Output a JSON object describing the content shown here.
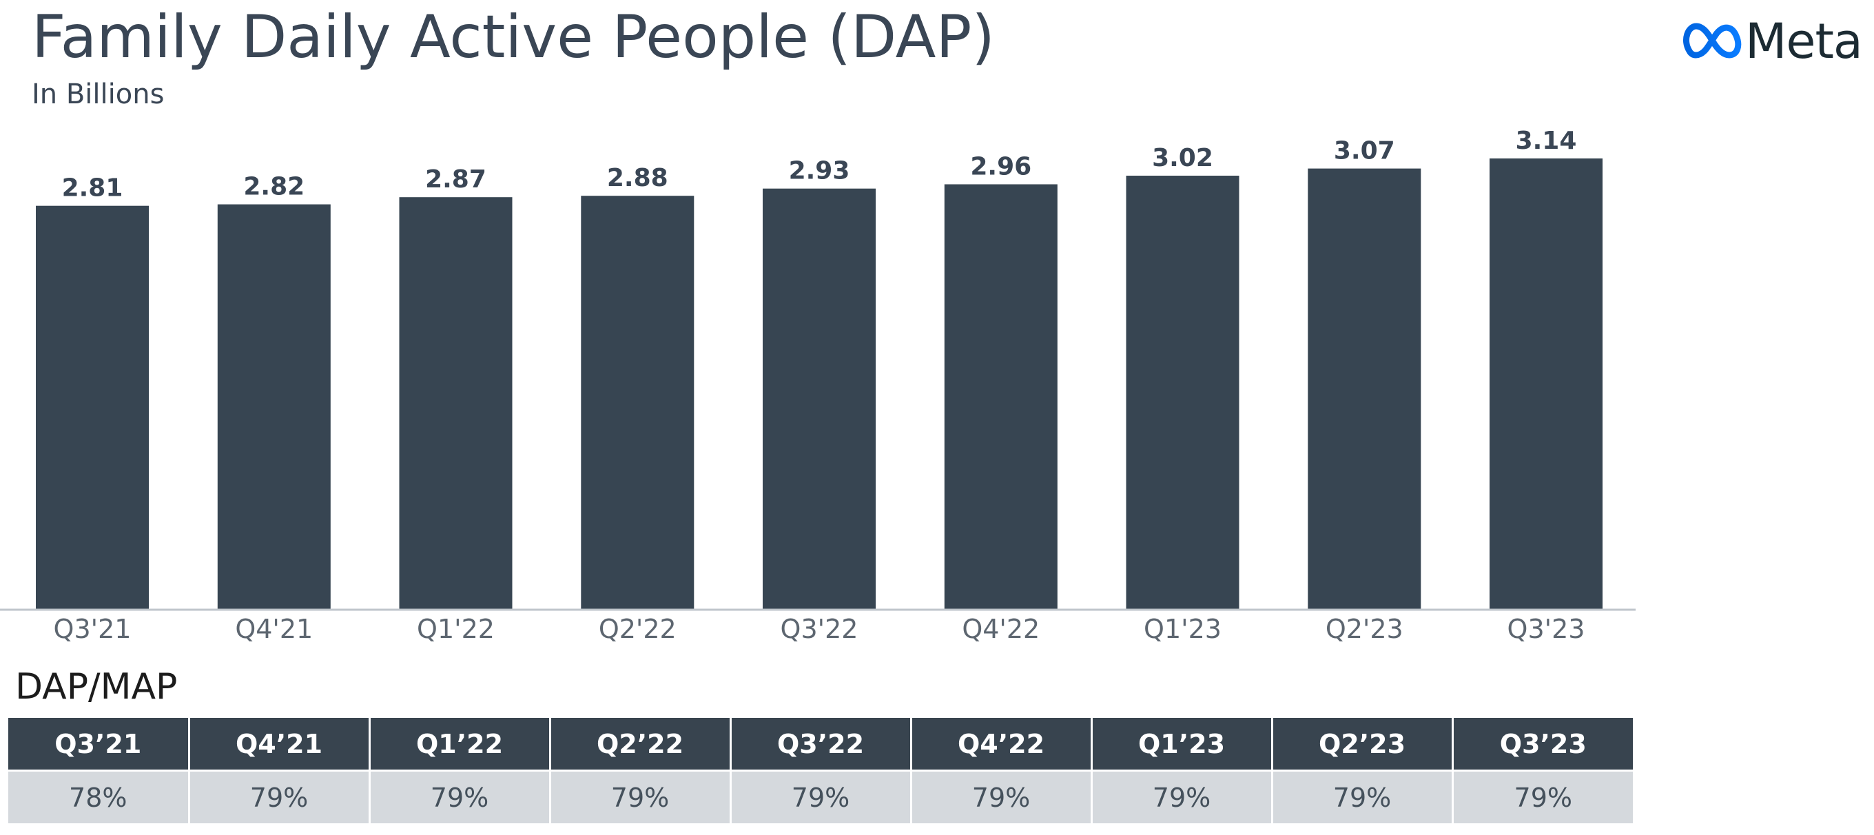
{
  "header": {
    "title": "Family Daily Active People (DAP)",
    "subtitle": "In Billions",
    "logo_text": "Meta",
    "logo_icon": "meta-infinity-icon"
  },
  "colors": {
    "bar": "#374552",
    "title": "#3a4655",
    "axis_line": "#bfc5cb",
    "tick_label": "#5d6670",
    "table_header_bg": "#38444f",
    "table_value_bg": "#d5d9dd",
    "logo_blue": "#0866ff"
  },
  "chart_data": {
    "type": "bar",
    "title": "Family Daily Active People (DAP)",
    "subtitle": "In Billions",
    "categories": [
      "Q3'21",
      "Q4'21",
      "Q1'22",
      "Q2'22",
      "Q3'22",
      "Q4'22",
      "Q1'23",
      "Q2'23",
      "Q3'23"
    ],
    "values": [
      2.81,
      2.82,
      2.87,
      2.88,
      2.93,
      2.96,
      3.02,
      3.07,
      3.14
    ],
    "value_labels": [
      "2.81",
      "2.82",
      "2.87",
      "2.88",
      "2.93",
      "2.96",
      "3.02",
      "3.07",
      "3.14"
    ],
    "ylim": [
      0,
      3.14
    ],
    "grid": false,
    "legend": "none"
  },
  "dap_map": {
    "label": "DAP/MAP",
    "quarters": [
      "Q3’21",
      "Q4’21",
      "Q1’22",
      "Q2’22",
      "Q3’22",
      "Q4’22",
      "Q1’23",
      "Q2’23",
      "Q3’23"
    ],
    "values": [
      "78%",
      "79%",
      "79%",
      "79%",
      "79%",
      "79%",
      "79%",
      "79%",
      "79%"
    ]
  }
}
